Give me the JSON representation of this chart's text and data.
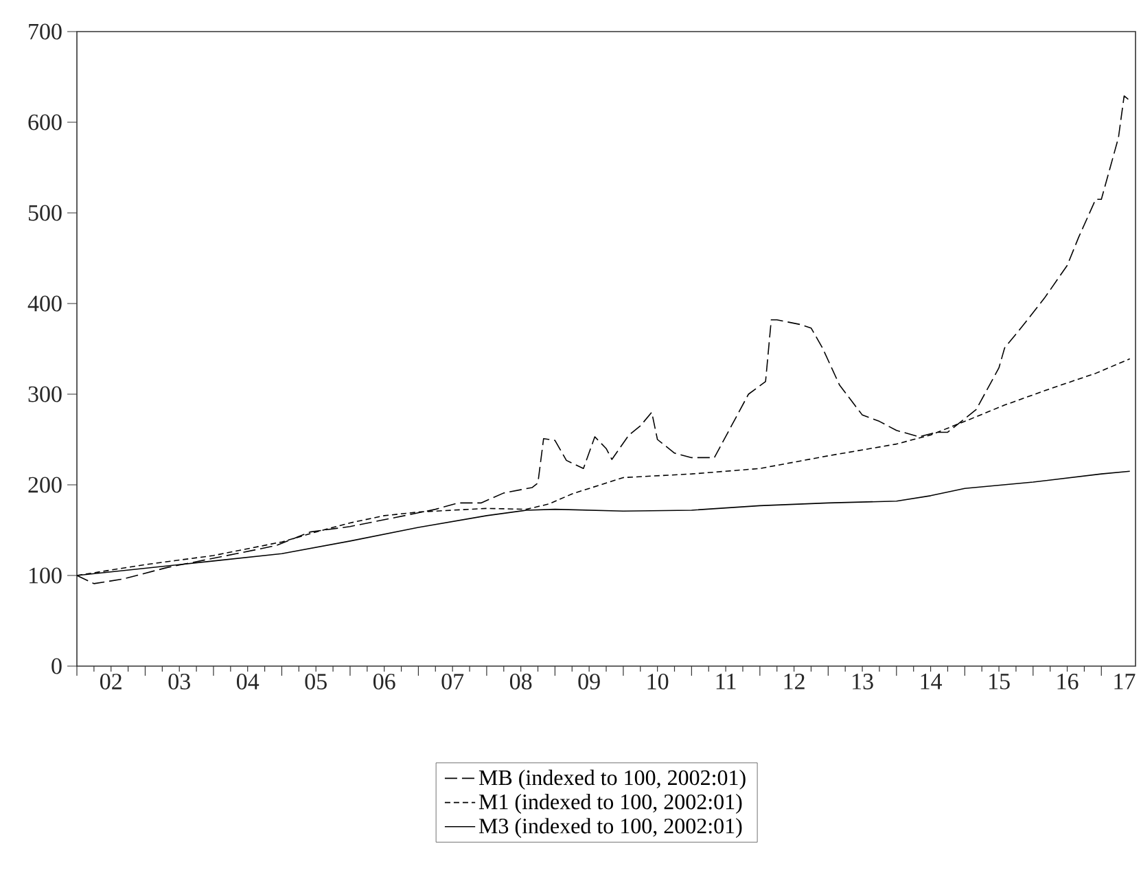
{
  "chart_data": {
    "type": "line",
    "xlim": [
      "2002-01",
      "2017-07"
    ],
    "ylim": [
      0,
      700
    ],
    "yticks": [
      0,
      100,
      200,
      300,
      400,
      500,
      600,
      700
    ],
    "xticks": [
      {
        "value": "2002-01",
        "label": null
      },
      {
        "value": "2003-01",
        "label": null
      },
      {
        "value": "2004-01",
        "label": null
      },
      {
        "value": "2005-01",
        "label": null
      },
      {
        "value": "2006-01",
        "label": null
      },
      {
        "value": "2007-01",
        "label": null
      },
      {
        "value": "2008-01",
        "label": null
      },
      {
        "value": "2009-01",
        "label": null
      },
      {
        "value": "2010-01",
        "label": null
      },
      {
        "value": "2011-01",
        "label": null
      },
      {
        "value": "2012-01",
        "label": null
      },
      {
        "value": "2013-01",
        "label": null
      },
      {
        "value": "2014-01",
        "label": null
      },
      {
        "value": "2015-01",
        "label": null
      },
      {
        "value": "2016-01",
        "label": null
      },
      {
        "value": "2017-01",
        "label": null
      },
      {
        "value": "2002-07",
        "label": "02"
      },
      {
        "value": "2003-07",
        "label": "03"
      },
      {
        "value": "2004-07",
        "label": "04"
      },
      {
        "value": "2005-07",
        "label": "05"
      },
      {
        "value": "2006-07",
        "label": "06"
      },
      {
        "value": "2007-07",
        "label": "07"
      },
      {
        "value": "2008-07",
        "label": "08"
      },
      {
        "value": "2009-07",
        "label": "09"
      },
      {
        "value": "2010-07",
        "label": "10"
      },
      {
        "value": "2011-07",
        "label": "11"
      },
      {
        "value": "2012-07",
        "label": "12"
      },
      {
        "value": "2013-07",
        "label": "13"
      },
      {
        "value": "2014-07",
        "label": "14"
      },
      {
        "value": "2015-07",
        "label": "15"
      },
      {
        "value": "2016-07",
        "label": "16"
      },
      {
        "value": "2017-05",
        "label": "17"
      }
    ],
    "grid": false,
    "legend": "bottom",
    "marker": "none",
    "series": [
      {
        "name": "MB (indexed to 100, 2002:01)",
        "color": "#000000",
        "line_style": "dashed",
        "x": [
          "2002-01",
          "2002-04",
          "2002-09",
          "2003-05",
          "2004-05",
          "2004-12",
          "2005-06",
          "2006-01",
          "2006-09",
          "2007-04",
          "2007-08",
          "2007-12",
          "2008-04",
          "2008-09",
          "2008-10",
          "2008-11",
          "2009-01",
          "2009-03",
          "2009-06",
          "2009-08",
          "2009-10",
          "2009-11",
          "2010-02",
          "2010-04",
          "2010-06",
          "2010-07",
          "2010-10",
          "2011-01",
          "2011-05",
          "2011-08",
          "2011-11",
          "2012-02",
          "2012-03",
          "2012-04",
          "2012-08",
          "2012-10",
          "2012-12",
          "2013-03",
          "2013-07",
          "2013-10",
          "2014-01",
          "2014-05",
          "2014-08",
          "2014-10",
          "2015-03",
          "2015-07",
          "2015-08",
          "2015-11",
          "2016-03",
          "2016-07",
          "2016-09",
          "2016-12",
          "2017-01",
          "2017-04",
          "2017-05",
          "2017-06"
        ],
        "values": [
          100,
          91,
          96,
          109,
          124,
          133,
          148,
          154,
          164,
          173,
          180,
          180,
          191,
          197,
          202,
          251,
          249,
          227,
          218,
          253,
          240,
          228,
          255,
          265,
          280,
          250,
          235,
          230,
          230,
          265,
          300,
          314,
          382,
          382,
          377,
          373,
          351,
          310,
          277,
          270,
          260,
          253,
          258,
          258,
          283,
          329,
          351,
          374,
          406,
          442,
          473,
          515,
          515,
          583,
          629,
          624
        ]
      },
      {
        "name": "M1 (indexed to 100, 2002:01)",
        "color": "#000000",
        "line_style": "dashed",
        "x": [
          "2002-01",
          "2003-01",
          "2004-01",
          "2005-01",
          "2005-07",
          "2006-01",
          "2006-07",
          "2007-01",
          "2007-07",
          "2008-01",
          "2008-08",
          "2008-12",
          "2009-04",
          "2009-09",
          "2010-01",
          "2011-01",
          "2012-01",
          "2013-01",
          "2014-01",
          "2014-07",
          "2015-01",
          "2015-08",
          "2016-04",
          "2016-12",
          "2017-06"
        ],
        "values": [
          100,
          112,
          122,
          137,
          148,
          158,
          166,
          170,
          172,
          174,
          173,
          179,
          190,
          200,
          208,
          212,
          218,
          232,
          245,
          255,
          270,
          288,
          306,
          323,
          339
        ]
      },
      {
        "name": "M3 (indexed to 100, 2002:01)",
        "color": "#000000",
        "line_style": "solid",
        "x": [
          "2002-01",
          "2003-01",
          "2004-01",
          "2005-01",
          "2006-01",
          "2007-01",
          "2008-01",
          "2008-08",
          "2009-01",
          "2010-01",
          "2011-01",
          "2012-01",
          "2013-01",
          "2014-01",
          "2014-07",
          "2015-01",
          "2016-01",
          "2017-01",
          "2017-06"
        ],
        "values": [
          100,
          108,
          116,
          124,
          138,
          153,
          166,
          172,
          173,
          171,
          172,
          177,
          180,
          182,
          188,
          196,
          203,
          212,
          215
        ]
      }
    ]
  }
}
